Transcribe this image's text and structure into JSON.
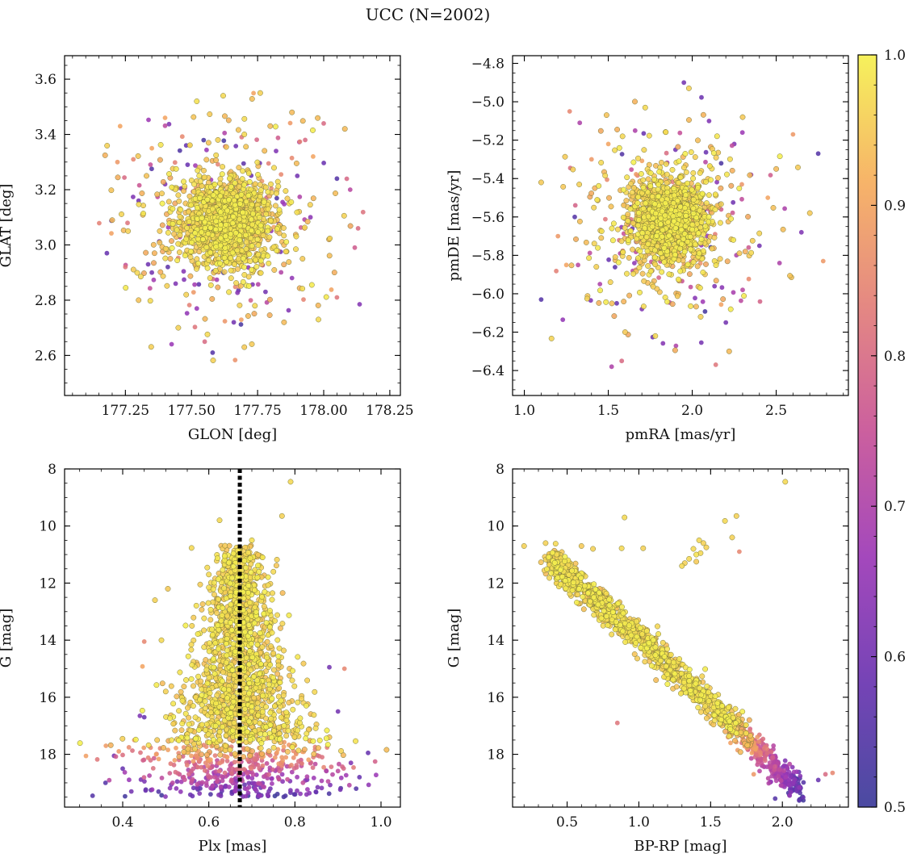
{
  "figure": {
    "title": "UCC (N=2002)"
  },
  "colors": {
    "colormap": "plasma",
    "cmap_stops": [
      "#3b3b99",
      "#6a34b0",
      "#9c39b6",
      "#c75296",
      "#e27e78",
      "#f6ae5c",
      "#f5f04e"
    ],
    "edge": "#7a7a3a",
    "vline": "#000000"
  },
  "chart_data": [
    {
      "type": "scatter",
      "id": "sky",
      "xlabel": "GLON [deg]",
      "ylabel": "GLAT [deg]",
      "xlim": [
        177.02,
        178.29
      ],
      "ylim": [
        2.455,
        3.685
      ],
      "xticks": [
        177.25,
        177.5,
        177.75,
        178.0,
        178.25
      ],
      "xtick_labels": [
        "177.25",
        "177.50",
        "177.75",
        "178.00",
        "178.25"
      ],
      "yticks": [
        2.6,
        2.8,
        3.0,
        3.2,
        3.4,
        3.6
      ],
      "ytick_labels": [
        "2.6",
        "2.8",
        "3.0",
        "3.2",
        "3.4",
        "3.6"
      ],
      "x_minor": 0.05,
      "y_minor": 0.05,
      "invert_y": false,
      "points": [
        [
          177.63,
          3.08,
          0.98
        ],
        [
          177.58,
          3.13,
          0.99
        ],
        [
          177.67,
          3.05,
          0.97
        ],
        [
          177.55,
          3.02,
          0.98
        ],
        [
          177.72,
          3.15,
          0.96
        ],
        [
          177.61,
          3.2,
          0.99
        ],
        [
          177.5,
          3.1,
          0.95
        ],
        [
          177.69,
          2.98,
          0.98
        ],
        [
          177.6,
          3.0,
          0.99
        ],
        [
          177.77,
          3.07,
          0.97
        ],
        [
          177.45,
          3.18,
          0.96
        ],
        [
          177.66,
          3.25,
          0.98
        ],
        [
          177.53,
          3.28,
          0.94
        ],
        [
          177.8,
          3.22,
          0.97
        ],
        [
          177.42,
          2.95,
          0.92
        ],
        [
          177.73,
          2.9,
          0.96
        ],
        [
          177.57,
          2.88,
          0.97
        ],
        [
          177.85,
          3.0,
          0.93
        ],
        [
          177.38,
          3.05,
          0.95
        ],
        [
          177.65,
          3.12,
          0.99
        ],
        [
          177.62,
          3.16,
          0.99
        ],
        [
          177.7,
          3.1,
          0.98
        ],
        [
          177.56,
          3.07,
          0.99
        ],
        [
          177.64,
          3.03,
          0.98
        ],
        [
          177.59,
          3.18,
          0.97
        ],
        [
          177.75,
          3.02,
          0.99
        ],
        [
          177.51,
          3.22,
          0.98
        ],
        [
          177.68,
          2.94,
          0.97
        ],
        [
          177.47,
          3.01,
          0.98
        ],
        [
          177.79,
          3.13,
          0.98
        ],
        [
          177.2,
          3.09,
          0.93
        ],
        [
          177.28,
          3.31,
          0.85
        ],
        [
          177.35,
          3.35,
          0.9
        ],
        [
          177.3,
          2.8,
          0.94
        ],
        [
          177.45,
          2.7,
          0.96
        ],
        [
          177.55,
          2.65,
          0.8
        ],
        [
          177.58,
          2.61,
          0.55
        ],
        [
          177.7,
          2.63,
          0.95
        ],
        [
          177.85,
          2.72,
          0.93
        ],
        [
          177.98,
          2.73,
          0.97
        ],
        [
          178.05,
          2.81,
          0.82
        ],
        [
          178.13,
          3.06,
          0.8
        ],
        [
          178.1,
          3.2,
          0.72
        ],
        [
          178.0,
          3.44,
          0.8
        ],
        [
          177.88,
          3.48,
          0.93
        ],
        [
          177.76,
          3.55,
          0.96
        ],
        [
          177.62,
          3.54,
          0.97
        ],
        [
          177.52,
          3.52,
          0.98
        ],
        [
          177.4,
          3.46,
          0.9
        ],
        [
          177.23,
          3.43,
          0.9
        ],
        [
          177.18,
          2.97,
          0.58
        ],
        [
          177.25,
          2.92,
          0.82
        ],
        [
          177.35,
          2.9,
          0.6
        ],
        [
          177.4,
          3.22,
          0.62
        ],
        [
          177.48,
          3.36,
          0.58
        ],
        [
          177.82,
          3.34,
          0.62
        ],
        [
          177.9,
          3.25,
          0.6
        ],
        [
          177.95,
          3.1,
          0.64
        ],
        [
          177.88,
          2.88,
          0.65
        ],
        [
          177.78,
          2.83,
          0.6
        ],
        [
          177.66,
          2.72,
          0.6
        ],
        [
          177.52,
          2.77,
          0.66
        ],
        [
          177.44,
          2.86,
          0.62
        ],
        [
          178.05,
          3.24,
          0.55
        ],
        [
          177.3,
          3.16,
          0.6
        ],
        [
          177.22,
          3.3,
          0.88
        ],
        [
          178.08,
          3.42,
          0.93
        ],
        [
          177.93,
          3.38,
          0.8
        ],
        [
          177.36,
          2.97,
          0.92
        ],
        [
          177.92,
          2.95,
          0.95
        ],
        [
          177.6,
          3.38,
          0.96
        ],
        [
          177.7,
          3.4,
          0.97
        ],
        [
          177.42,
          3.12,
          0.98
        ],
        [
          177.87,
          3.15,
          0.97
        ],
        [
          177.74,
          2.78,
          0.97
        ],
        [
          177.48,
          2.82,
          0.96
        ],
        [
          177.96,
          3.32,
          0.9
        ],
        [
          177.33,
          3.25,
          0.94
        ],
        [
          177.26,
          3.05,
          0.96
        ],
        [
          178.02,
          3.02,
          0.92
        ]
      ],
      "random": {
        "seed": 11,
        "count": 1240,
        "center": [
          177.63,
          3.08
        ],
        "sigma": [
          0.085,
          0.075
        ],
        "halo_count": 360,
        "halo_sigma": [
          0.2,
          0.19
        ],
        "clip": [
          177.15,
          178.18,
          2.58,
          3.58
        ]
      }
    },
    {
      "type": "scatter",
      "id": "pm",
      "xlabel": "pmRA [mas/yr]",
      "ylabel": "pmDE [mas/yr]",
      "xlim": [
        0.93,
        2.93
      ],
      "ylim": [
        -6.53,
        -4.76
      ],
      "xticks": [
        1.0,
        1.5,
        2.0,
        2.5
      ],
      "xtick_labels": [
        "1.0",
        "1.5",
        "2.0",
        "2.5"
      ],
      "yticks": [
        -6.4,
        -6.2,
        -6.0,
        -5.8,
        -5.6,
        -5.4,
        -5.2,
        -5.0,
        -4.8
      ],
      "ytick_labels": [
        "−6.4",
        "−6.2",
        "−6.0",
        "−5.8",
        "−5.6",
        "−5.4",
        "−5.2",
        "−5.0",
        "−4.8"
      ],
      "x_minor": 0.1,
      "y_minor": 0.05,
      "invert_y": false,
      "points": [
        [
          1.86,
          -5.62,
          0.99
        ],
        [
          1.8,
          -5.55,
          0.98
        ],
        [
          1.92,
          -5.68,
          0.99
        ],
        [
          1.75,
          -5.7,
          0.97
        ],
        [
          1.98,
          -5.5,
          0.96
        ],
        [
          1.83,
          -5.45,
          0.98
        ],
        [
          1.9,
          -5.8,
          0.97
        ],
        [
          1.7,
          -5.58,
          0.95
        ],
        [
          2.05,
          -5.63,
          0.96
        ],
        [
          1.88,
          -5.72,
          0.99
        ],
        [
          1.1,
          -6.03,
          0.55
        ],
        [
          1.1,
          -5.42,
          0.95
        ],
        [
          1.27,
          -5.05,
          0.85
        ],
        [
          1.33,
          -5.11,
          0.7
        ],
        [
          1.52,
          -6.38,
          0.7
        ],
        [
          1.58,
          -6.35,
          0.8
        ],
        [
          1.95,
          -4.9,
          0.6
        ],
        [
          1.98,
          -4.93,
          0.96
        ],
        [
          2.14,
          -6.37,
          0.82
        ],
        [
          2.6,
          -5.17,
          0.88
        ],
        [
          2.78,
          -5.83,
          0.88
        ],
        [
          2.75,
          -5.27,
          0.55
        ],
        [
          2.65,
          -5.68,
          0.62
        ],
        [
          2.7,
          -5.58,
          0.95
        ],
        [
          2.52,
          -5.84,
          0.7
        ],
        [
          1.4,
          -5.3,
          0.88
        ],
        [
          1.3,
          -5.6,
          0.55
        ],
        [
          1.32,
          -5.85,
          0.72
        ],
        [
          1.45,
          -5.95,
          0.7
        ],
        [
          1.55,
          -6.05,
          0.58
        ],
        [
          1.7,
          -6.08,
          0.62
        ],
        [
          2.2,
          -6.15,
          0.6
        ],
        [
          2.3,
          -5.98,
          0.72
        ],
        [
          2.35,
          -5.38,
          0.68
        ],
        [
          2.25,
          -5.22,
          0.62
        ],
        [
          2.1,
          -5.1,
          0.62
        ],
        [
          1.66,
          -5.15,
          0.7
        ],
        [
          1.5,
          -5.22,
          0.9
        ],
        [
          1.9,
          -5.25,
          0.6
        ],
        [
          2.4,
          -5.75,
          0.6
        ],
        [
          1.2,
          -5.7,
          0.88
        ],
        [
          1.25,
          -5.85,
          0.9
        ],
        [
          1.42,
          -5.45,
          0.92
        ],
        [
          2.45,
          -5.5,
          0.9
        ],
        [
          2.5,
          -5.35,
          0.93
        ],
        [
          2.3,
          -5.08,
          0.95
        ],
        [
          1.6,
          -6.2,
          0.95
        ],
        [
          2.05,
          -6.12,
          0.96
        ],
        [
          1.78,
          -6.22,
          0.97
        ],
        [
          2.22,
          -6.3,
          0.93
        ]
      ],
      "random": {
        "seed": 23,
        "count": 1250,
        "center": [
          1.86,
          -5.62
        ],
        "sigma": [
          0.11,
          0.11
        ],
        "halo_count": 340,
        "halo_sigma": [
          0.28,
          0.27
        ],
        "clip": [
          1.15,
          2.72,
          -6.3,
          -4.95
        ]
      }
    },
    {
      "type": "scatter",
      "id": "plx",
      "xlabel": "Plx [mas]",
      "ylabel": "G [mag]",
      "xlim": [
        0.265,
        1.045
      ],
      "ylim": [
        8.0,
        19.85
      ],
      "xticks": [
        0.4,
        0.6,
        0.8,
        1.0
      ],
      "xtick_labels": [
        "0.4",
        "0.6",
        "0.8",
        "1.0"
      ],
      "yticks": [
        8,
        10,
        12,
        14,
        16,
        18
      ],
      "ytick_labels": [
        "8",
        "10",
        "12",
        "14",
        "16",
        "18"
      ],
      "x_minor": 0.05,
      "y_minor": 0.5,
      "invert_y": true,
      "vline": 0.672,
      "points": [
        [
          0.79,
          8.45,
          0.97
        ],
        [
          0.77,
          9.65,
          0.96
        ],
        [
          0.625,
          9.8,
          0.97
        ],
        [
          0.56,
          10.77,
          0.97
        ],
        [
          0.505,
          12.2,
          0.95
        ],
        [
          0.475,
          12.6,
          0.96
        ],
        [
          0.45,
          14.05,
          0.85
        ],
        [
          0.446,
          14.92,
          0.9
        ],
        [
          0.915,
          15.0,
          0.85
        ],
        [
          0.88,
          14.95,
          0.6
        ],
        [
          0.82,
          14.82,
          0.95
        ],
        [
          0.49,
          14.0,
          0.97
        ],
        [
          0.6,
          11.7,
          0.97
        ],
        [
          0.75,
          11.6,
          0.97
        ],
        [
          0.7,
          10.5,
          0.98
        ],
        [
          0.33,
          19.45,
          0.55
        ],
        [
          0.97,
          17.95,
          0.58
        ],
        [
          0.93,
          18.3,
          0.62
        ],
        [
          0.95,
          18.8,
          0.58
        ],
        [
          0.38,
          18.05,
          0.6
        ],
        [
          0.4,
          18.5,
          0.58
        ],
        [
          0.36,
          19.0,
          0.55
        ],
        [
          0.42,
          19.3,
          0.6
        ],
        [
          0.44,
          16.65,
          0.62
        ],
        [
          0.45,
          16.7,
          0.58
        ],
        [
          0.9,
          16.5,
          0.6
        ],
        [
          0.52,
          16.9,
          0.95
        ],
        [
          0.85,
          16.95,
          0.95
        ],
        [
          0.5,
          15.8,
          0.96
        ],
        [
          0.82,
          16.2,
          0.96
        ],
        [
          0.48,
          17.5,
          0.95
        ],
        [
          0.88,
          17.4,
          0.94
        ],
        [
          0.55,
          17.3,
          0.97
        ],
        [
          0.78,
          17.35,
          0.96
        ],
        [
          0.57,
          16.0,
          0.97
        ]
      ],
      "random": {
        "seed": 37,
        "count": 1400,
        "mag_range": [
          10.6,
          17.4
        ],
        "center_x": 0.672,
        "spread0": 0.022,
        "spread1": 0.075,
        "faint_count": 540,
        "faint_mag": [
          17.4,
          19.5
        ],
        "faint_spread": 0.13,
        "clip": [
          0.3,
          1.02,
          8.2,
          19.7
        ]
      }
    },
    {
      "type": "scatter",
      "id": "cmd",
      "xlabel": "BP-RP [mag]",
      "ylabel": "G [mag]",
      "xlim": [
        0.12,
        2.46
      ],
      "ylim": [
        8.0,
        19.85
      ],
      "xticks": [
        0.5,
        1.0,
        1.5,
        2.0
      ],
      "xtick_labels": [
        "0.5",
        "1.0",
        "1.5",
        "2.0"
      ],
      "yticks": [
        8,
        10,
        12,
        14,
        16,
        18
      ],
      "ytick_labels": [
        "8",
        "10",
        "12",
        "14",
        "16",
        "18"
      ],
      "x_minor": 0.1,
      "y_minor": 0.5,
      "invert_y": true,
      "points": [
        [
          2.02,
          8.45,
          0.97
        ],
        [
          1.68,
          9.65,
          0.96
        ],
        [
          1.6,
          9.82,
          0.97
        ],
        [
          0.9,
          9.7,
          0.97
        ],
        [
          1.65,
          10.4,
          0.96
        ],
        [
          1.7,
          10.9,
          0.85
        ],
        [
          1.42,
          10.5,
          0.97
        ],
        [
          1.45,
          10.6,
          0.96
        ],
        [
          1.38,
          10.8,
          0.97
        ],
        [
          1.4,
          11.0,
          0.98
        ],
        [
          1.35,
          11.15,
          0.97
        ],
        [
          1.32,
          11.3,
          0.96
        ],
        [
          1.4,
          11.25,
          0.95
        ],
        [
          1.47,
          10.75,
          0.96
        ],
        [
          1.43,
          10.95,
          0.97
        ],
        [
          0.2,
          10.7,
          0.96
        ],
        [
          0.35,
          10.6,
          0.96
        ],
        [
          0.42,
          10.62,
          0.97
        ],
        [
          0.6,
          10.7,
          0.95
        ],
        [
          0.68,
          10.8,
          0.96
        ],
        [
          0.88,
          10.78,
          0.97
        ],
        [
          1.03,
          10.78,
          0.96
        ],
        [
          1.3,
          11.4,
          0.97
        ],
        [
          0.85,
          16.9,
          0.82
        ],
        [
          1.8,
          18.7,
          0.88
        ],
        [
          2.3,
          18.7,
          0.8
        ],
        [
          2.35,
          18.65,
          0.85
        ],
        [
          2.25,
          18.9,
          0.58
        ],
        [
          2.1,
          19.2,
          0.55
        ],
        [
          1.95,
          19.55,
          0.55
        ]
      ],
      "random": {
        "seed": 59,
        "count": 1450,
        "ms_top": [
          0.38,
          11.2
        ],
        "ms_bottom": [
          2.15,
          19.4
        ],
        "scatter_mag": 0.22,
        "clip": [
          0.15,
          2.42,
          8.2,
          19.7
        ]
      }
    }
  ],
  "colorbar": {
    "range": [
      0.5,
      1.0
    ],
    "ticks": [
      0.5,
      0.6,
      0.7,
      0.8,
      0.9,
      1.0
    ],
    "tick_labels": [
      "0.5",
      "0.6",
      "0.7",
      "0.8",
      "0.9",
      "1.0"
    ],
    "minor": 0.02
  }
}
